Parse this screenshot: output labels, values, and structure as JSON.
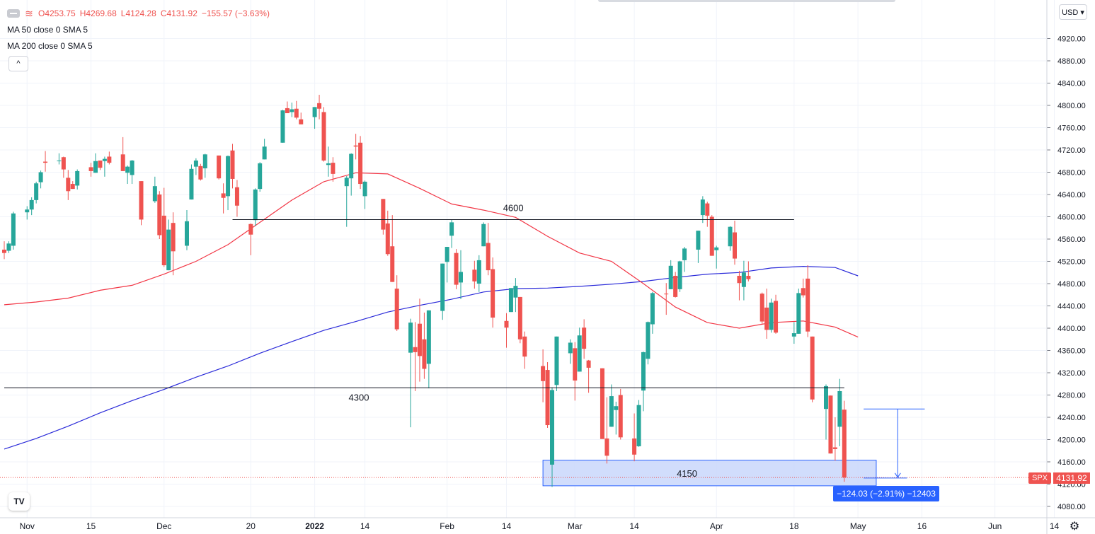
{
  "legend": {
    "ohlc_open": "O4253.75",
    "ohlc_high": "H4269.68",
    "ohlc_low": "L4124.28",
    "ohlc_close": "C4131.92",
    "ohlc_change": "−155.57 (−3.63%)",
    "ma50": "MA 50 close 0 SMA 5",
    "ma200": "MA 200 close 0 SMA 5",
    "collapse_glyph": "^",
    "wave_glyph": "≋",
    "settings_icon": "dots-icon"
  },
  "currency": "USD ▾",
  "price_axis_ticks": [
    "4920.00",
    "4880.00",
    "4840.00",
    "4800.00",
    "4760.00",
    "4720.00",
    "4680.00",
    "4640.00",
    "4600.00",
    "4560.00",
    "4520.00",
    "4480.00",
    "4440.00",
    "4400.00",
    "4360.00",
    "4320.00",
    "4280.00",
    "4240.00",
    "4200.00",
    "4160.00",
    "4120.00",
    "4080.00"
  ],
  "time_axis_ticks": [
    "Nov",
    "15",
    "Dec",
    "20",
    "2022",
    "14",
    "Feb",
    "14",
    "Mar",
    "14",
    "Apr",
    "18",
    "May",
    "16",
    "Jun",
    "14"
  ],
  "symbol_tag": "SPX",
  "last_price": "4131.92",
  "measure_label": "−124.03 (−2.91%) −12403",
  "logo_text": "TV",
  "colors": {
    "up": "#26a69a",
    "down": "#ef5350",
    "ma50": "#f23645",
    "ma200": "#2b2bd9",
    "grid": "#f0f3fa",
    "support_line": "#131722",
    "zone_fill": "#c9d7fb",
    "zone_stroke": "#2962ff",
    "measure": "#2962ff"
  },
  "chart_data": {
    "type": "candlestick",
    "symbol": "SPX",
    "y_range": [
      4060,
      4960
    ],
    "y_axis_label_precision": 2,
    "x_range": [
      "2021-10-27",
      "2022-06-18"
    ],
    "levels": [
      {
        "label": "4600",
        "price": 4595,
        "from": "2021-12-16",
        "to": "2022-04-18"
      },
      {
        "label": "4300",
        "price": 4293,
        "from": "2021-10-27",
        "to": "2022-04-29"
      }
    ],
    "zone": {
      "label": "4150",
      "from": "2022-02-22",
      "to": "2022-05-06",
      "top": 4163,
      "bottom": 4117
    },
    "measure": {
      "from_date": "2022-05-02",
      "to_date": "2022-05-06",
      "start_price": 4255,
      "end_price": 4131,
      "label": "−124.03 (−2.91%) −12403"
    },
    "ma50": [
      [
        "2021-10-27",
        4442
      ],
      [
        "2021-11-03",
        4447
      ],
      [
        "2021-11-10",
        4454
      ],
      [
        "2021-11-17",
        4468
      ],
      [
        "2021-11-24",
        4477
      ],
      [
        "2021-12-01",
        4497
      ],
      [
        "2021-12-08",
        4520
      ],
      [
        "2021-12-15",
        4550
      ],
      [
        "2021-12-22",
        4590
      ],
      [
        "2021-12-29",
        4630
      ],
      [
        "2022-01-05",
        4663
      ],
      [
        "2022-01-12",
        4679
      ],
      [
        "2022-01-19",
        4677
      ],
      [
        "2022-01-26",
        4651
      ],
      [
        "2022-02-02",
        4623
      ],
      [
        "2022-02-09",
        4612
      ],
      [
        "2022-02-16",
        4599
      ],
      [
        "2022-02-23",
        4565
      ],
      [
        "2022-03-02",
        4535
      ],
      [
        "2022-03-09",
        4520
      ],
      [
        "2022-03-16",
        4480
      ],
      [
        "2022-03-23",
        4438
      ],
      [
        "2022-03-30",
        4410
      ],
      [
        "2022-04-06",
        4400
      ],
      [
        "2022-04-13",
        4410
      ],
      [
        "2022-04-20",
        4413
      ],
      [
        "2022-04-27",
        4402
      ],
      [
        "2022-05-02",
        4384
      ]
    ],
    "ma200": [
      [
        "2021-10-27",
        4183
      ],
      [
        "2021-11-03",
        4202
      ],
      [
        "2021-11-10",
        4224
      ],
      [
        "2021-11-17",
        4248
      ],
      [
        "2021-11-24",
        4270
      ],
      [
        "2021-12-01",
        4290
      ],
      [
        "2021-12-08",
        4312
      ],
      [
        "2021-12-15",
        4332
      ],
      [
        "2021-12-22",
        4355
      ],
      [
        "2021-12-29",
        4376
      ],
      [
        "2022-01-05",
        4396
      ],
      [
        "2022-01-12",
        4412
      ],
      [
        "2022-01-19",
        4429
      ],
      [
        "2022-01-26",
        4441
      ],
      [
        "2022-02-02",
        4452
      ],
      [
        "2022-02-09",
        4465
      ],
      [
        "2022-02-16",
        4471
      ],
      [
        "2022-02-23",
        4472
      ],
      [
        "2022-03-02",
        4475
      ],
      [
        "2022-03-09",
        4479
      ],
      [
        "2022-03-16",
        4484
      ],
      [
        "2022-03-23",
        4491
      ],
      [
        "2022-03-30",
        4497
      ],
      [
        "2022-04-06",
        4500
      ],
      [
        "2022-04-13",
        4508
      ],
      [
        "2022-04-20",
        4511
      ],
      [
        "2022-04-27",
        4509
      ],
      [
        "2022-05-02",
        4494
      ]
    ],
    "candles": [
      [
        "2021-10-27",
        4541,
        4556,
        4524,
        4535
      ],
      [
        "2021-10-28",
        4539,
        4556,
        4535,
        4552
      ],
      [
        "2021-10-29",
        4548,
        4609,
        4541,
        4606
      ],
      [
        "2021-11-01",
        4608,
        4619,
        4595,
        4613
      ],
      [
        "2021-11-02",
        4613,
        4635,
        4603,
        4630
      ],
      [
        "2021-11-03",
        4630,
        4663,
        4624,
        4660
      ],
      [
        "2021-11-04",
        4662,
        4683,
        4651,
        4680
      ],
      [
        "2021-11-05",
        4699,
        4718,
        4681,
        4697
      ],
      [
        "2021-11-08",
        4701,
        4714,
        4694,
        4701
      ],
      [
        "2021-11-09",
        4707,
        4708,
        4670,
        4685
      ],
      [
        "2021-11-10",
        4670,
        4684,
        4630,
        4646
      ],
      [
        "2021-11-11",
        4659,
        4664,
        4650,
        4650
      ],
      [
        "2021-11-12",
        4656,
        4685,
        4649,
        4682
      ],
      [
        "2021-11-15",
        4689,
        4697,
        4672,
        4682
      ],
      [
        "2021-11-16",
        4679,
        4714,
        4679,
        4700
      ],
      [
        "2021-11-17",
        4701,
        4701,
        4684,
        4688
      ],
      [
        "2021-11-18",
        4700,
        4708,
        4672,
        4704
      ],
      [
        "2021-11-19",
        4708,
        4717,
        4694,
        4697
      ],
      [
        "2021-11-22",
        4712,
        4743,
        4682,
        4682
      ],
      [
        "2021-11-23",
        4679,
        4692,
        4659,
        4690
      ],
      [
        "2021-11-24",
        4675,
        4702,
        4659,
        4701
      ],
      [
        "2021-11-26",
        4664,
        4664,
        4585,
        4595
      ],
      [
        "2021-11-29",
        4628,
        4672,
        4625,
        4655
      ],
      [
        "2021-11-30",
        4640,
        4646,
        4560,
        4567
      ],
      [
        "2021-12-01",
        4602,
        4652,
        4510,
        4513
      ],
      [
        "2021-12-02",
        4504,
        4595,
        4504,
        4577
      ],
      [
        "2021-12-03",
        4589,
        4608,
        4495,
        4538
      ],
      [
        "2021-12-06",
        4548,
        4612,
        4540,
        4592
      ],
      [
        "2021-12-07",
        4631,
        4694,
        4631,
        4686
      ],
      [
        "2021-12-08",
        4690,
        4705,
        4675,
        4701
      ],
      [
        "2021-12-09",
        4691,
        4695,
        4665,
        4667
      ],
      [
        "2021-12-10",
        4687,
        4713,
        4670,
        4712
      ],
      [
        "2021-12-13",
        4710,
        4710,
        4667,
        4669
      ],
      [
        "2021-12-14",
        4642,
        4660,
        4606,
        4634
      ],
      [
        "2021-12-15",
        4637,
        4710,
        4612,
        4709
      ],
      [
        "2021-12-16",
        4719,
        4731,
        4651,
        4668
      ],
      [
        "2021-12-17",
        4653,
        4666,
        4600,
        4620
      ],
      [
        "2021-12-20",
        4587,
        4588,
        4531,
        4568
      ],
      [
        "2021-12-21",
        4594,
        4651,
        4583,
        4649
      ],
      [
        "2021-12-22",
        4650,
        4698,
        4645,
        4696
      ],
      [
        "2021-12-23",
        4703,
        4740,
        4703,
        4726
      ],
      [
        "2021-12-27",
        4733,
        4792,
        4733,
        4791
      ],
      [
        "2021-12-28",
        4795,
        4807,
        4788,
        4786
      ],
      [
        "2021-12-29",
        4788,
        4805,
        4779,
        4793
      ],
      [
        "2021-12-30",
        4794,
        4808,
        4775,
        4778
      ],
      [
        "2021-12-31",
        4775,
        4787,
        4766,
        4766
      ],
      [
        "2022-01-03",
        4779,
        4797,
        4758,
        4797
      ],
      [
        "2022-01-04",
        4804,
        4819,
        4775,
        4794
      ],
      [
        "2022-01-05",
        4788,
        4797,
        4699,
        4701
      ],
      [
        "2022-01-06",
        4693,
        4726,
        4672,
        4696
      ],
      [
        "2022-01-07",
        4697,
        4707,
        4663,
        4677
      ],
      [
        "2022-01-10",
        4655,
        4673,
        4582,
        4670
      ],
      [
        "2022-01-11",
        4669,
        4714,
        4638,
        4713
      ],
      [
        "2022-01-12",
        4728,
        4749,
        4703,
        4726
      ],
      [
        "2022-01-13",
        4733,
        4745,
        4650,
        4659
      ],
      [
        "2022-01-14",
        4637,
        4665,
        4614,
        4663
      ],
      [
        "2022-01-18",
        4632,
        4632,
        4568,
        4577
      ],
      [
        "2022-01-19",
        4588,
        4611,
        4530,
        4533
      ],
      [
        "2022-01-20",
        4547,
        4603,
        4483,
        4483
      ],
      [
        "2022-01-21",
        4471,
        4495,
        4395,
        4398
      ],
      [
        "2022-01-24",
        4356,
        4417,
        4222,
        4410
      ],
      [
        "2022-01-25",
        4366,
        4411,
        4287,
        4357
      ],
      [
        "2022-01-26",
        4408,
        4453,
        4304,
        4350
      ],
      [
        "2022-01-27",
        4380,
        4428,
        4309,
        4327
      ],
      [
        "2022-01-28",
        4336,
        4432,
        4292,
        4432
      ],
      [
        "2022-01-31",
        4431,
        4516,
        4415,
        4516
      ],
      [
        "2022-02-01",
        4519,
        4546,
        4482,
        4546
      ],
      [
        "2022-02-02",
        4566,
        4595,
        4544,
        4590
      ],
      [
        "2022-02-03",
        4535,
        4542,
        4470,
        4478
      ],
      [
        "2022-02-04",
        4482,
        4540,
        4452,
        4501
      ],
      [
        "2022-02-07",
        4505,
        4521,
        4471,
        4484
      ],
      [
        "2022-02-08",
        4480,
        4531,
        4465,
        4522
      ],
      [
        "2022-02-09",
        4547,
        4590,
        4547,
        4587
      ],
      [
        "2022-02-10",
        4553,
        4589,
        4495,
        4504
      ],
      [
        "2022-02-11",
        4506,
        4527,
        4401,
        4419
      ],
      [
        "2022-02-14",
        4413,
        4427,
        4365,
        4401
      ],
      [
        "2022-02-15",
        4429,
        4472,
        4429,
        4472
      ],
      [
        "2022-02-16",
        4455,
        4490,
        4429,
        4476
      ],
      [
        "2022-02-17",
        4456,
        4456,
        4373,
        4380
      ],
      [
        "2022-02-18",
        4385,
        4394,
        4327,
        4349
      ],
      [
        "2022-02-22",
        4332,
        4362,
        4267,
        4305
      ],
      [
        "2022-02-23",
        4325,
        4339,
        4221,
        4226
      ],
      [
        "2022-02-24",
        4155,
        4294,
        4115,
        4289
      ],
      [
        "2022-02-25",
        4298,
        4385,
        4287,
        4385
      ],
      [
        "2022-02-28",
        4355,
        4380,
        4336,
        4374
      ],
      [
        "2022-03-01",
        4364,
        4375,
        4270,
        4306
      ],
      [
        "2022-03-02",
        4322,
        4401,
        4322,
        4387
      ],
      [
        "2022-03-03",
        4401,
        4416,
        4345,
        4363
      ],
      [
        "2022-03-04",
        4342,
        4343,
        4284,
        4329
      ],
      [
        "2022-03-07",
        4328,
        4328,
        4202,
        4201
      ],
      [
        "2022-03-08",
        4202,
        4276,
        4157,
        4171
      ],
      [
        "2022-03-09",
        4223,
        4299,
        4223,
        4278
      ],
      [
        "2022-03-10",
        4253,
        4268,
        4209,
        4260
      ],
      [
        "2022-03-11",
        4280,
        4291,
        4200,
        4204
      ],
      [
        "2022-03-14",
        4202,
        4247,
        4161,
        4173
      ],
      [
        "2022-03-15",
        4188,
        4271,
        4187,
        4262
      ],
      [
        "2022-03-16",
        4288,
        4358,
        4251,
        4357
      ],
      [
        "2022-03-17",
        4345,
        4412,
        4335,
        4411
      ],
      [
        "2022-03-18",
        4407,
        4465,
        4390,
        4463
      ],
      [
        "2022-03-21",
        4462,
        4481,
        4424,
        4461
      ],
      [
        "2022-03-22",
        4470,
        4522,
        4470,
        4512
      ],
      [
        "2022-03-23",
        4494,
        4501,
        4455,
        4456
      ],
      [
        "2022-03-24",
        4470,
        4521,
        4465,
        4520
      ],
      [
        "2022-03-25",
        4522,
        4546,
        4501,
        4543
      ],
      [
        "2022-03-28",
        4541,
        4575,
        4517,
        4575
      ],
      [
        "2022-03-29",
        4603,
        4637,
        4589,
        4631
      ],
      [
        "2022-03-30",
        4624,
        4627,
        4582,
        4602
      ],
      [
        "2022-03-31",
        4600,
        4603,
        4530,
        4530
      ],
      [
        "2022-04-01",
        4540,
        4548,
        4507,
        4545
      ],
      [
        "2022-04-04",
        4547,
        4583,
        4539,
        4582
      ],
      [
        "2022-04-05",
        4572,
        4593,
        4514,
        4525
      ],
      [
        "2022-04-06",
        4494,
        4503,
        4450,
        4481
      ],
      [
        "2022-04-07",
        4474,
        4521,
        4450,
        4500
      ],
      [
        "2022-04-08",
        4494,
        4520,
        4484,
        4488
      ],
      [
        "2022-04-11",
        4462,
        4464,
        4408,
        4412
      ],
      [
        "2022-04-12",
        4437,
        4471,
        4381,
        4397
      ],
      [
        "2022-04-13",
        4397,
        4453,
        4392,
        4446
      ],
      [
        "2022-04-14",
        4449,
        4460,
        4390,
        4392
      ],
      [
        "2022-04-18",
        4385,
        4411,
        4372,
        4391
      ],
      [
        "2022-04-19",
        4390,
        4471,
        4390,
        4463
      ],
      [
        "2022-04-20",
        4472,
        4489,
        4455,
        4459
      ],
      [
        "2022-04-21",
        4489,
        4513,
        4384,
        4394
      ],
      [
        "2022-04-22",
        4385,
        4385,
        4267,
        4272
      ],
      [
        "2022-04-25",
        4255,
        4299,
        4200,
        4296
      ],
      [
        "2022-04-26",
        4279,
        4279,
        4175,
        4175
      ],
      [
        "2022-04-27",
        4186,
        4240,
        4162,
        4183
      ],
      [
        "2022-04-28",
        4223,
        4309,
        4188,
        4287
      ],
      [
        "2022-04-29",
        4253.75,
        4269.68,
        4124.28,
        4131.92
      ]
    ]
  }
}
